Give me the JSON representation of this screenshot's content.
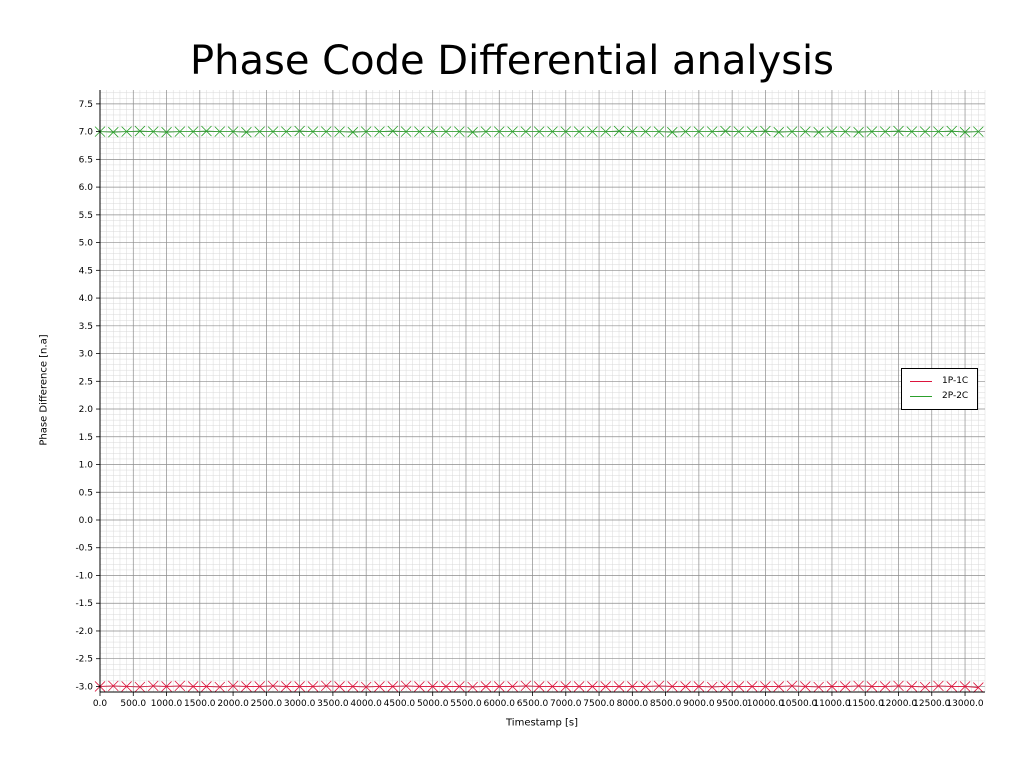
{
  "chart_data": {
    "type": "scatter",
    "title": "Phase Code Differential analysis",
    "xlabel": "Timestamp [s]",
    "ylabel": "Phase Difference [n.a]",
    "xlim": [
      0,
      13300
    ],
    "ylim": [
      -3.1,
      7.75
    ],
    "x_ticks": [
      0,
      500,
      1000,
      1500,
      2000,
      2500,
      3000,
      3500,
      4000,
      4500,
      5000,
      5500,
      6000,
      6500,
      7000,
      7500,
      8000,
      8500,
      9000,
      9500,
      10000,
      10500,
      11000,
      11500,
      12000,
      12500,
      13000
    ],
    "x_tick_labels": [
      "0.0",
      "500.0",
      "1000.0",
      "1500.0",
      "2000.0",
      "2500.0",
      "3000.0",
      "3500.0",
      "4000.0",
      "4500.0",
      "5000.0",
      "5500.0",
      "6000.0",
      "6500.0",
      "7000.0",
      "7500.0",
      "8000.0",
      "8500.0",
      "9000.0",
      "9500.0",
      "10000.0",
      "10500.0",
      "11000.0",
      "11500.0",
      "12000.0",
      "12500.0",
      "13000.0"
    ],
    "y_ticks": [
      -3.0,
      -2.5,
      -2.0,
      -1.5,
      -1.0,
      -0.5,
      0.0,
      0.5,
      1.0,
      1.5,
      2.0,
      2.5,
      3.0,
      3.5,
      4.0,
      4.5,
      5.0,
      5.5,
      6.0,
      6.5,
      7.0,
      7.5
    ],
    "y_tick_labels": [
      "-3.0",
      "-2.5",
      "-2.0",
      "-1.5",
      "-1.0",
      "-0.5",
      "0.0",
      "0.5",
      "1.0",
      "1.5",
      "2.0",
      "2.5",
      "3.0",
      "3.5",
      "4.0",
      "4.5",
      "5.0",
      "5.5",
      "6.0",
      "6.5",
      "7.0",
      "7.5"
    ],
    "grid": true,
    "minor_grid": true,
    "legend_position": "center-right",
    "x": [
      0,
      200,
      400,
      600,
      800,
      1000,
      1200,
      1400,
      1600,
      1800,
      2000,
      2200,
      2400,
      2600,
      2800,
      3000,
      3200,
      3400,
      3600,
      3800,
      4000,
      4200,
      4400,
      4600,
      4800,
      5000,
      5200,
      5400,
      5600,
      5800,
      6000,
      6200,
      6400,
      6600,
      6800,
      7000,
      7200,
      7400,
      7600,
      7800,
      8000,
      8200,
      8400,
      8600,
      8800,
      9000,
      9200,
      9400,
      9600,
      9800,
      10000,
      10200,
      10400,
      10600,
      10800,
      11000,
      11200,
      11400,
      11600,
      11800,
      12000,
      12200,
      12400,
      12600,
      12800,
      13000,
      13200
    ],
    "series": [
      {
        "name": "1P-1C",
        "color": "#dc143c",
        "marker": "x",
        "values": [
          -3.0,
          -2.99,
          -3.0,
          -3.01,
          -2.99,
          -3.0,
          -2.99,
          -3.0,
          -3.0,
          -3.01,
          -2.99,
          -3.0,
          -3.0,
          -2.99,
          -3.0,
          -3.0,
          -3.0,
          -2.99,
          -3.0,
          -3.0,
          -3.01,
          -3.0,
          -3.0,
          -2.99,
          -3.0,
          -3.0,
          -3.0,
          -3.0,
          -3.01,
          -3.0,
          -3.0,
          -3.0,
          -2.99,
          -3.0,
          -3.0,
          -3.0,
          -3.0,
          -3.0,
          -3.0,
          -3.0,
          -3.0,
          -3.0,
          -2.99,
          -3.0,
          -3.0,
          -3.0,
          -3.01,
          -3.0,
          -3.0,
          -3.0,
          -3.0,
          -3.0,
          -2.99,
          -3.0,
          -3.01,
          -3.0,
          -3.0,
          -2.99,
          -3.0,
          -3.0,
          -2.99,
          -3.0,
          -3.01,
          -2.99,
          -3.0,
          -3.0,
          -3.02
        ]
      },
      {
        "name": "2P-2C",
        "color": "#2ca02c",
        "marker": "x",
        "values": [
          7.0,
          6.99,
          7.0,
          7.01,
          7.0,
          6.99,
          7.0,
          7.0,
          7.01,
          7.0,
          7.0,
          6.99,
          7.0,
          7.0,
          7.0,
          7.01,
          7.0,
          7.0,
          7.0,
          6.99,
          7.0,
          7.0,
          7.01,
          7.0,
          7.0,
          7.0,
          7.0,
          7.0,
          6.99,
          7.0,
          7.0,
          7.0,
          7.0,
          7.0,
          7.0,
          7.0,
          7.0,
          7.0,
          7.0,
          7.01,
          7.0,
          7.0,
          7.0,
          6.99,
          7.0,
          7.0,
          7.0,
          7.01,
          7.0,
          7.0,
          7.01,
          6.99,
          7.0,
          7.0,
          6.99,
          7.0,
          7.0,
          6.99,
          7.0,
          7.0,
          7.01,
          7.0,
          7.0,
          7.0,
          7.01,
          6.99,
          7.0
        ]
      }
    ]
  }
}
